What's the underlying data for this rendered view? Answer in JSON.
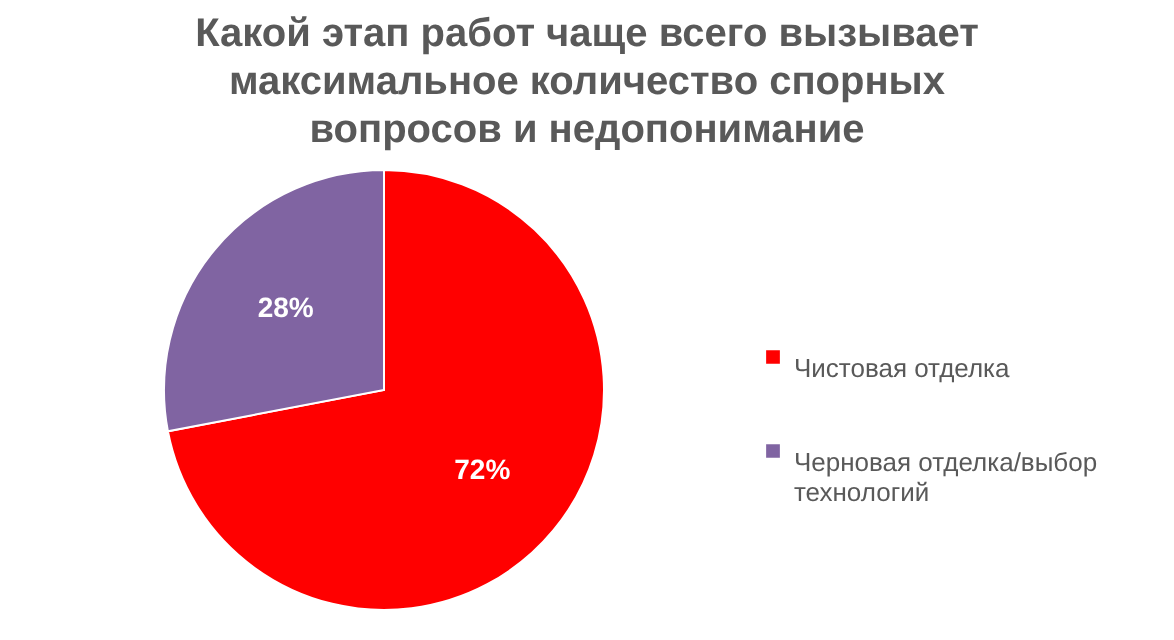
{
  "chart_data": {
    "type": "pie",
    "title": "Какой этап работ чаще всего вызывает максимальное количество спорных вопросов и недопонимание",
    "categories": [
      "Чистовая отделка",
      "Черновая отделка/выбор технологий"
    ],
    "values": [
      72,
      28
    ],
    "colors": [
      "#ff0000",
      "#8064a2"
    ],
    "value_labels": [
      "72%",
      "28%"
    ],
    "legend": "right"
  }
}
